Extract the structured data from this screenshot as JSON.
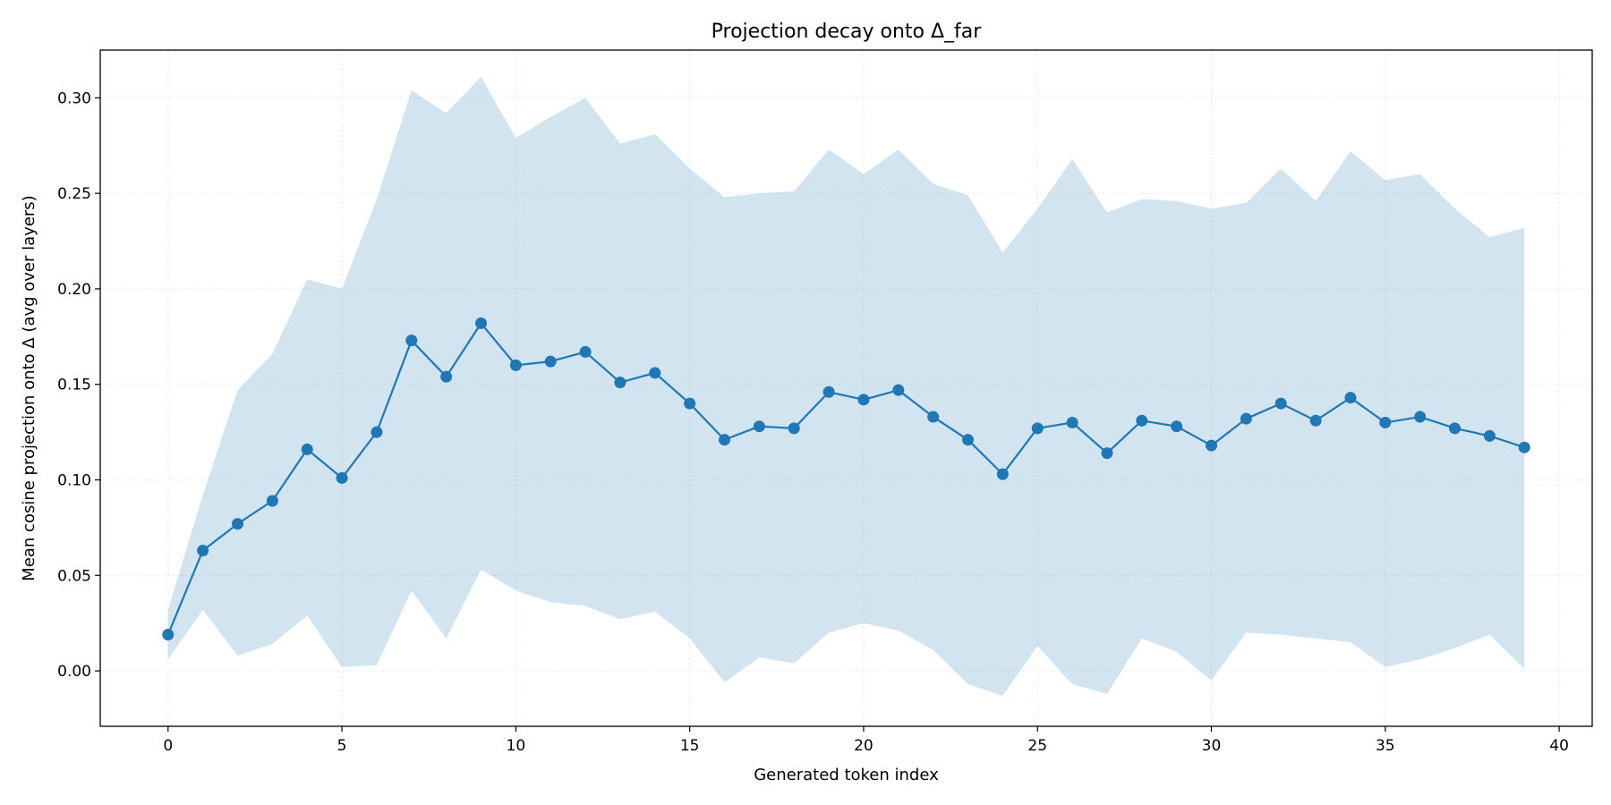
{
  "chart_data": {
    "type": "line",
    "title": "Projection decay onto Δ_far",
    "xlabel": "Generated token index",
    "ylabel": "Mean cosine projection onto Δ (avg over layers)",
    "xlim": [
      -1.95,
      40.95
    ],
    "ylim": [
      -0.029,
      0.325
    ],
    "grid": true,
    "xticks": [
      0,
      5,
      10,
      15,
      20,
      25,
      30,
      35,
      40
    ],
    "xtick_labels": [
      "0",
      "5",
      "10",
      "15",
      "20",
      "25",
      "30",
      "35",
      "40"
    ],
    "yticks": [
      0.0,
      0.05,
      0.1,
      0.15,
      0.2,
      0.25,
      0.3
    ],
    "ytick_labels": [
      "0.00",
      "0.05",
      "0.10",
      "0.15",
      "0.20",
      "0.25",
      "0.30"
    ],
    "colors": {
      "line": "#1f77b4",
      "band": "#1f77b4"
    },
    "x": [
      0,
      1,
      2,
      3,
      4,
      5,
      6,
      7,
      8,
      9,
      10,
      11,
      12,
      13,
      14,
      15,
      16,
      17,
      18,
      19,
      20,
      21,
      22,
      23,
      24,
      25,
      26,
      27,
      28,
      29,
      30,
      31,
      32,
      33,
      34,
      35,
      36,
      37,
      38,
      39
    ],
    "series": [
      {
        "values": [
          0.019,
          0.063,
          0.077,
          0.089,
          0.116,
          0.101,
          0.125,
          0.173,
          0.154,
          0.182,
          0.16,
          0.162,
          0.167,
          0.151,
          0.156,
          0.14,
          0.121,
          0.128,
          0.127,
          0.146,
          0.142,
          0.147,
          0.133,
          0.121,
          0.103,
          0.127,
          0.13,
          0.114,
          0.131,
          0.128,
          0.118,
          0.132,
          0.14,
          0.131,
          0.143,
          0.13,
          0.133,
          0.127,
          0.123,
          0.117
        ]
      }
    ],
    "band": {
      "upper": [
        0.032,
        0.092,
        0.147,
        0.166,
        0.205,
        0.2,
        0.247,
        0.304,
        0.292,
        0.311,
        0.279,
        0.29,
        0.3,
        0.276,
        0.281,
        0.263,
        0.248,
        0.25,
        0.251,
        0.273,
        0.26,
        0.273,
        0.255,
        0.249,
        0.219,
        0.242,
        0.268,
        0.24,
        0.247,
        0.246,
        0.242,
        0.245,
        0.263,
        0.246,
        0.272,
        0.257,
        0.26,
        0.242,
        0.227,
        0.232
      ],
      "lower": [
        0.006,
        0.032,
        0.008,
        0.014,
        0.029,
        0.002,
        0.003,
        0.042,
        0.017,
        0.053,
        0.042,
        0.036,
        0.034,
        0.027,
        0.031,
        0.017,
        -0.006,
        0.007,
        0.004,
        0.02,
        0.025,
        0.021,
        0.011,
        -0.007,
        -0.013,
        0.013,
        -0.007,
        -0.012,
        0.017,
        0.01,
        -0.005,
        0.02,
        0.019,
        0.017,
        0.015,
        0.002,
        0.006,
        0.012,
        0.019,
        0.001
      ]
    }
  }
}
